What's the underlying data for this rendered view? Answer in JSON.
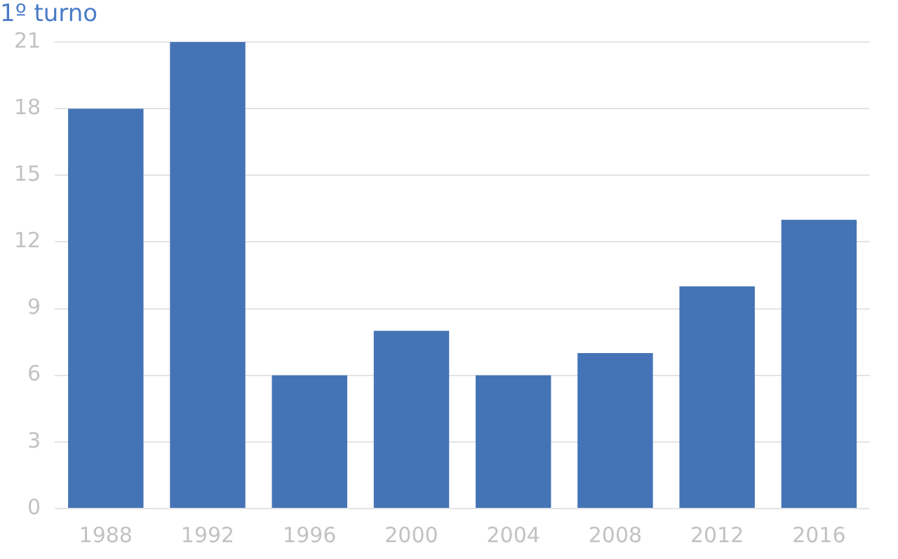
{
  "chart_data": {
    "type": "bar",
    "title": "1º turno",
    "categories": [
      "1988",
      "1992",
      "1996",
      "2000",
      "2004",
      "2008",
      "2012",
      "2016"
    ],
    "values": [
      18,
      21,
      6,
      8,
      6,
      7,
      10,
      13
    ],
    "color": "#4574b6",
    "ylim": [
      0,
      21
    ],
    "yticks": [
      0,
      3,
      6,
      9,
      12,
      15,
      18,
      21
    ],
    "grid": "y",
    "legend": false
  }
}
